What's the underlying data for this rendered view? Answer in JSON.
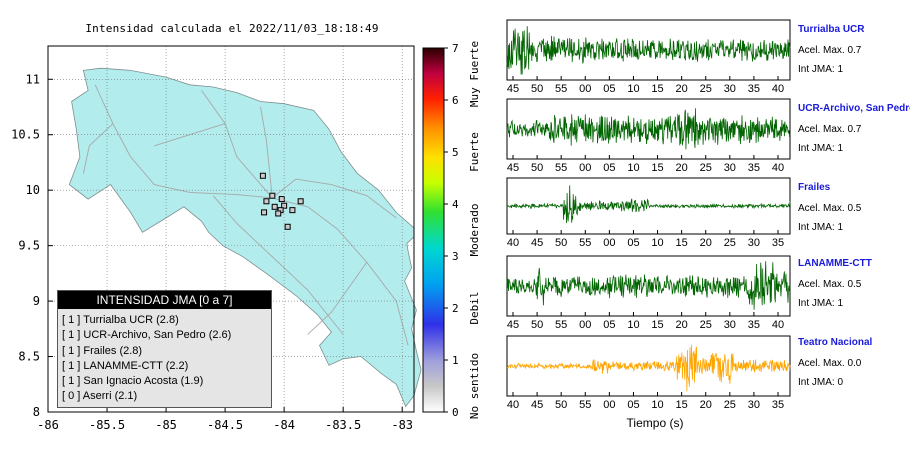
{
  "map": {
    "title": "Intensidad calculada el 2022/11/03_18:18:49",
    "lat_ticks": [
      "11",
      "10.5",
      "10",
      "9.5",
      "9",
      "8.5",
      "8"
    ],
    "lon_ticks": [
      "-86",
      "-85.5",
      "-85",
      "-84.5",
      "-84",
      "-83.5",
      "-83"
    ],
    "lat_range": [
      8,
      11.3
    ],
    "lon_range": [
      -86,
      -82.9
    ],
    "land_color": "#b2ecec",
    "station_markers": [
      {
        "lon": -84.18,
        "lat": 10.13
      },
      {
        "lon": -84.1,
        "lat": 9.95
      },
      {
        "lon": -84.15,
        "lat": 9.9
      },
      {
        "lon": -84.02,
        "lat": 9.92
      },
      {
        "lon": -84.08,
        "lat": 9.85
      },
      {
        "lon": -84.0,
        "lat": 9.86
      },
      {
        "lon": -83.86,
        "lat": 9.9
      },
      {
        "lon": -84.03,
        "lat": 9.82
      },
      {
        "lon": -83.93,
        "lat": 9.82
      },
      {
        "lon": -84.17,
        "lat": 9.8
      },
      {
        "lon": -84.05,
        "lat": 9.79
      },
      {
        "lon": -83.97,
        "lat": 9.67
      }
    ]
  },
  "colorbar": {
    "ticks": [
      "0",
      "1",
      "2",
      "3",
      "4",
      "5",
      "6",
      "7"
    ],
    "labels": [
      "No sentido",
      "Debil",
      "Moderado",
      "Fuerte",
      "Muy Fuerte"
    ]
  },
  "legend": {
    "header": "INTENSIDAD JMA [0 a 7]",
    "items": [
      "[ 1 ]  Turrialba UCR (2.8)",
      "[ 1 ]  UCR-Archivo, San Pedro (2.6)",
      "[ 1 ]  Frailes (2.8)",
      "[ 1 ]  LANAMME-CTT (2.2)",
      "[ 1 ]  San Ignacio Acosta (1.9)",
      "[ 0 ]  Aserri (2.1)"
    ]
  },
  "chart_data": [
    {
      "type": "line",
      "title": "Turrialba UCR",
      "annotations": [
        "Acel. Max. 0.7",
        "Int JMA: 1"
      ],
      "x_ticks": [
        "45",
        "50",
        "55",
        "00",
        "05",
        "10",
        "15",
        "20",
        "25",
        "30",
        "35",
        "40"
      ],
      "color": "#006400"
    },
    {
      "type": "line",
      "title": "UCR-Archivo, San Pedro",
      "annotations": [
        "Acel. Max. 0.7",
        "Int JMA: 1"
      ],
      "x_ticks": [
        "45",
        "50",
        "55",
        "00",
        "05",
        "10",
        "15",
        "20",
        "25",
        "30",
        "35",
        "40"
      ],
      "color": "#006400"
    },
    {
      "type": "line",
      "title": "Frailes",
      "annotations": [
        "Acel. Max. 0.5",
        "Int JMA: 1"
      ],
      "x_ticks": [
        "40",
        "45",
        "50",
        "55",
        "00",
        "05",
        "10",
        "15",
        "20",
        "25",
        "30",
        "35"
      ],
      "color": "#006400"
    },
    {
      "type": "line",
      "title": "LANAMME-CTT",
      "annotations": [
        "Acel. Max. 0.5",
        "Int JMA: 1"
      ],
      "x_ticks": [
        "45",
        "50",
        "55",
        "00",
        "05",
        "10",
        "15",
        "20",
        "25",
        "30",
        "35",
        "40"
      ],
      "color": "#006400"
    },
    {
      "type": "line",
      "title": "Teatro Nacional",
      "annotations": [
        "Acel. Max. 0.0",
        "Int JMA: 0"
      ],
      "x_ticks": [
        "40",
        "45",
        "50",
        "55",
        "00",
        "05",
        "10",
        "15",
        "20",
        "25",
        "30",
        "35"
      ],
      "color": "#ffa500",
      "xlabel": "Tiempo (s)"
    }
  ]
}
